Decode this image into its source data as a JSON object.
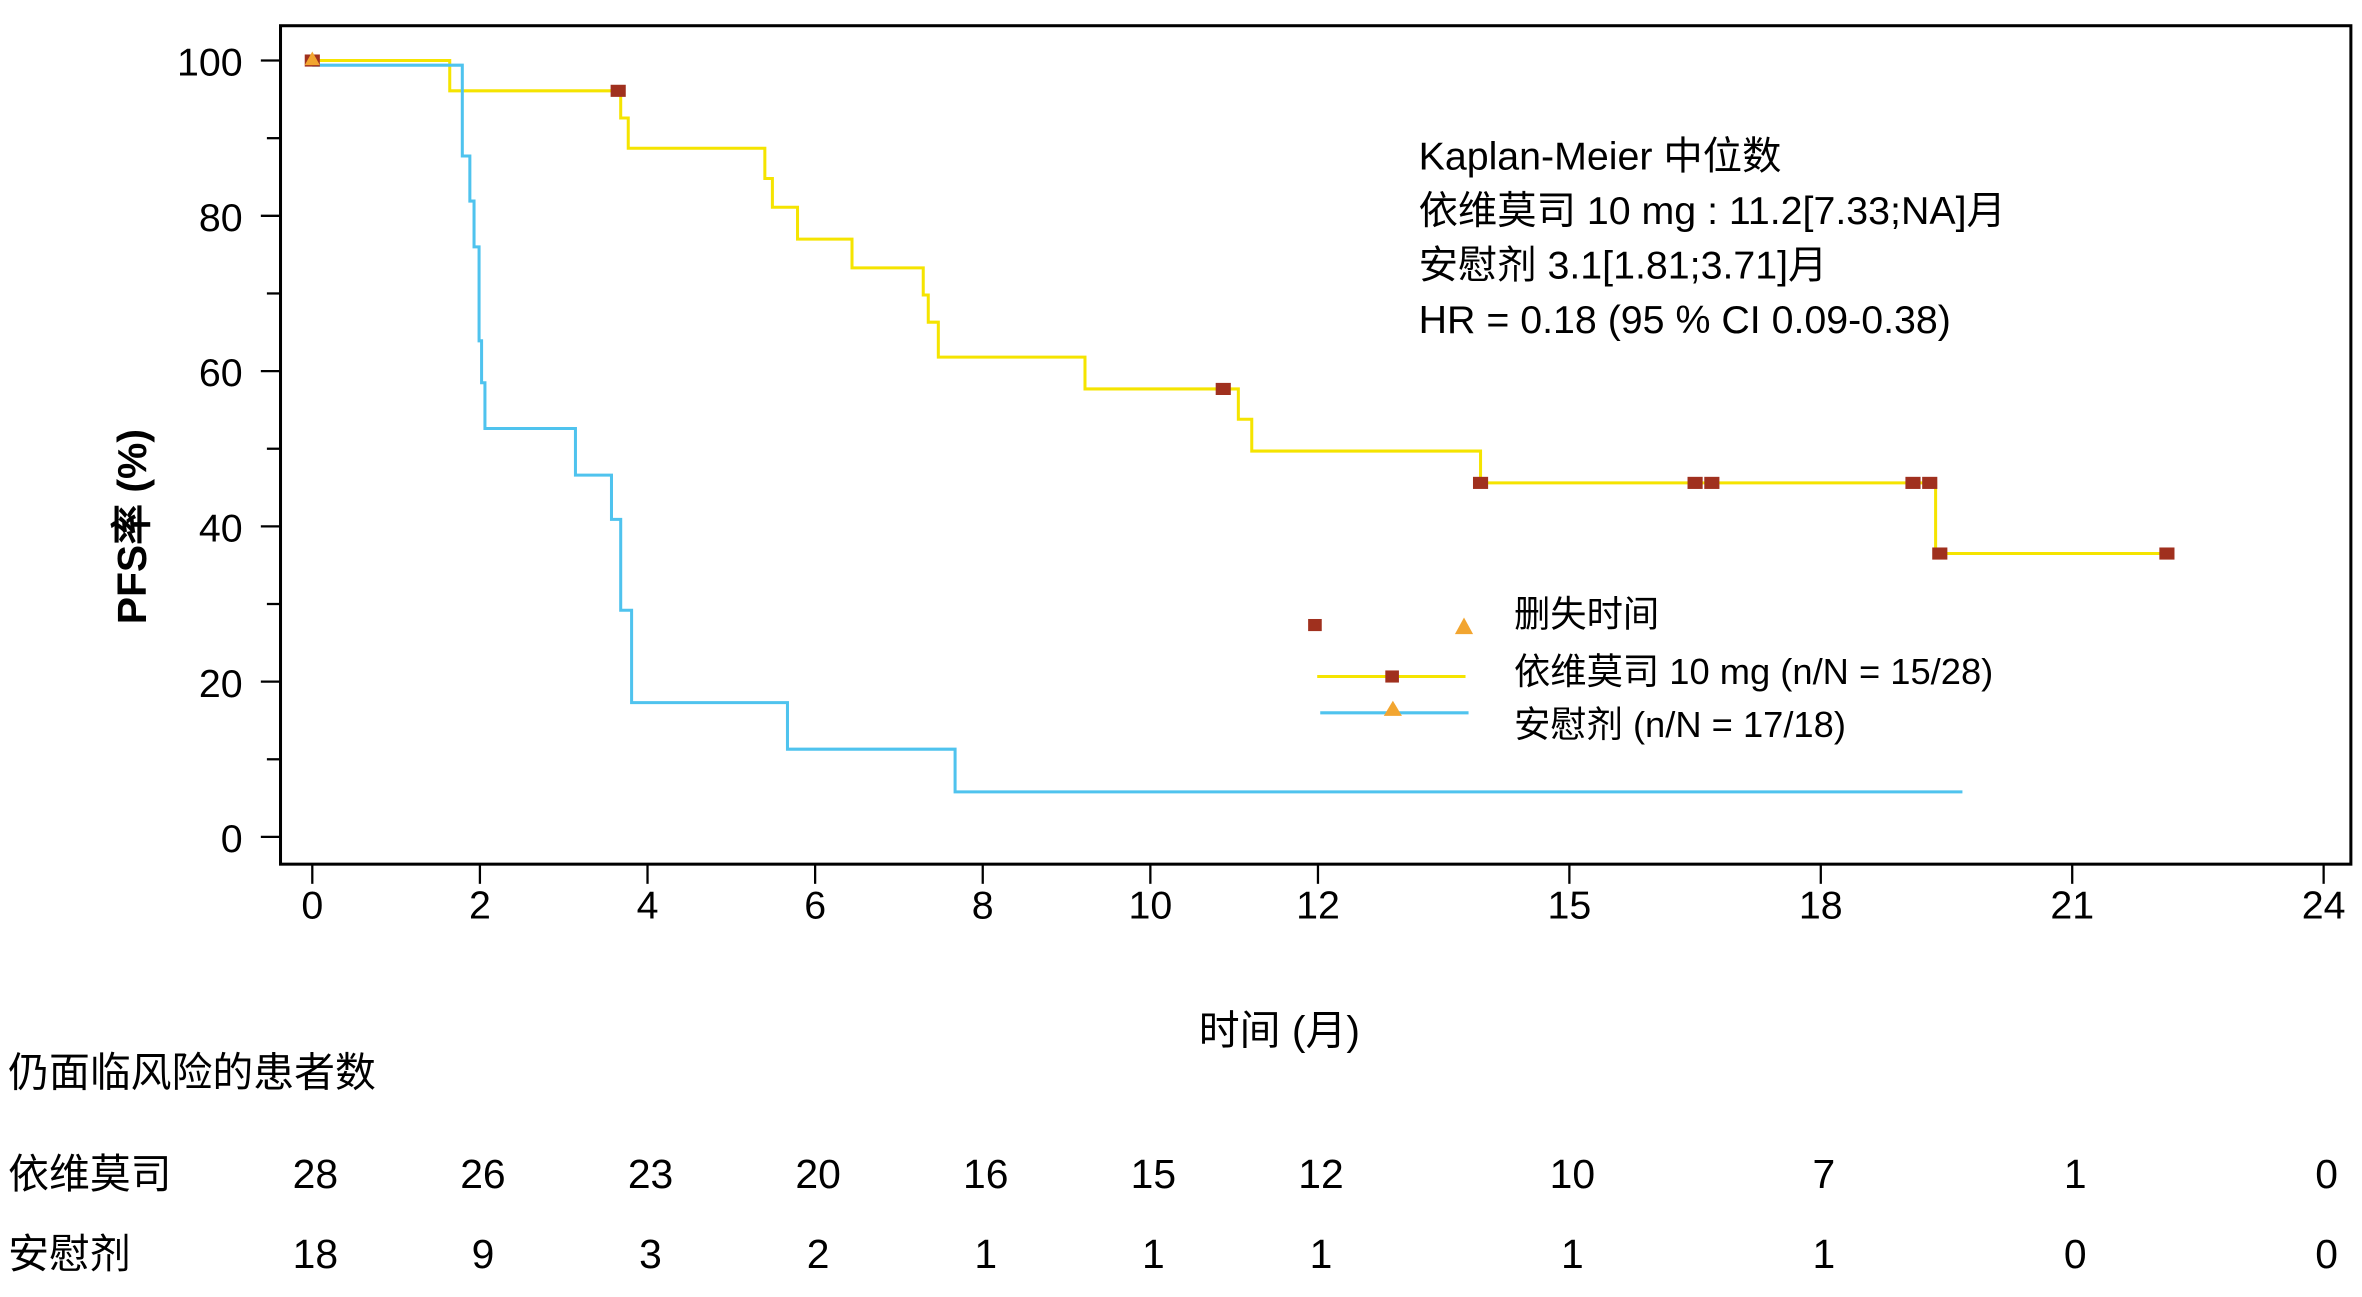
{
  "chart_data": {
    "type": "line",
    "subtype": "kaplan-meier step",
    "xlabel": "时间 (月)",
    "ylabel": "PFS率 (%)",
    "xlim": [
      0,
      24
    ],
    "ylim": [
      0,
      100
    ],
    "xticks": [
      0,
      2,
      4,
      6,
      8,
      10,
      12,
      15,
      18,
      21,
      24
    ],
    "yticks": [
      0,
      20,
      40,
      60,
      80,
      100
    ],
    "grid": false,
    "annotation": [
      "Kaplan-Meier 中位数",
      "依维莫司 10 mg : 11.2[7.33;NA]月",
      "安慰剂 3.1[1.81;3.71]月",
      "HR = 0.18 (95 % CI 0.09-0.38)"
    ],
    "legend": {
      "placement": "center-right",
      "censor_label": "删失时间",
      "entries": [
        "依维莫司 10 mg (n/N = 15/28)",
        "安慰剂 (n/N = 17/18)"
      ]
    },
    "series": [
      {
        "name": "依维莫司 10 mg",
        "color": "#f5e400",
        "censor_color": "#a0301e",
        "censor_marker": "square",
        "steps": [
          [
            0,
            100
          ],
          [
            1.64,
            96.1
          ],
          [
            3.68,
            92.6
          ],
          [
            3.77,
            88.7
          ],
          [
            5.4,
            84.8
          ],
          [
            5.49,
            81.1
          ],
          [
            5.79,
            77.0
          ],
          [
            6.44,
            73.3
          ],
          [
            7.29,
            69.8
          ],
          [
            7.35,
            66.3
          ],
          [
            7.47,
            61.8
          ],
          [
            9.22,
            57.7
          ],
          [
            11.05,
            53.8
          ],
          [
            11.21,
            49.7
          ],
          [
            13.94,
            45.6
          ],
          [
            19.37,
            36.5
          ]
        ],
        "end": 22.13,
        "censored": [
          [
            0,
            100
          ],
          [
            3.65,
            96.1
          ],
          [
            10.87,
            57.7
          ],
          [
            13.94,
            45.6
          ],
          [
            16.5,
            45.6
          ],
          [
            16.7,
            45.6
          ],
          [
            19.1,
            45.6
          ],
          [
            19.3,
            45.6
          ],
          [
            19.42,
            36.5
          ],
          [
            22.13,
            36.5
          ]
        ]
      },
      {
        "name": "安慰剂",
        "color": "#4fc3ee",
        "censor_color": "#f2a530",
        "censor_marker": "triangle",
        "steps": [
          [
            0,
            99.4
          ],
          [
            1.79,
            87.7
          ],
          [
            1.88,
            81.9
          ],
          [
            1.93,
            76.0
          ],
          [
            1.99,
            63.9
          ],
          [
            2.02,
            58.5
          ],
          [
            2.06,
            52.6
          ],
          [
            3.14,
            46.6
          ],
          [
            3.57,
            40.9
          ],
          [
            3.68,
            29.2
          ],
          [
            3.81,
            17.3
          ],
          [
            5.67,
            11.3
          ],
          [
            7.67,
            5.8
          ]
        ],
        "end": 19.69,
        "censored": [
          [
            0,
            100
          ]
        ]
      }
    ],
    "risk_table": {
      "title": "仍面临风险的患者数",
      "times": [
        0,
        2,
        4,
        6,
        8,
        10,
        12,
        15,
        18,
        21,
        24
      ],
      "rows": [
        {
          "label": "依维莫司",
          "values": [
            "28",
            "26",
            "23",
            "20",
            "16",
            "15",
            "12",
            "10",
            "7",
            "1",
            "0"
          ]
        },
        {
          "label": "安慰剂",
          "values": [
            "18",
            "9",
            "3",
            "2",
            "1",
            "1",
            "1",
            "1",
            "1",
            "0",
            "0"
          ]
        }
      ]
    }
  }
}
